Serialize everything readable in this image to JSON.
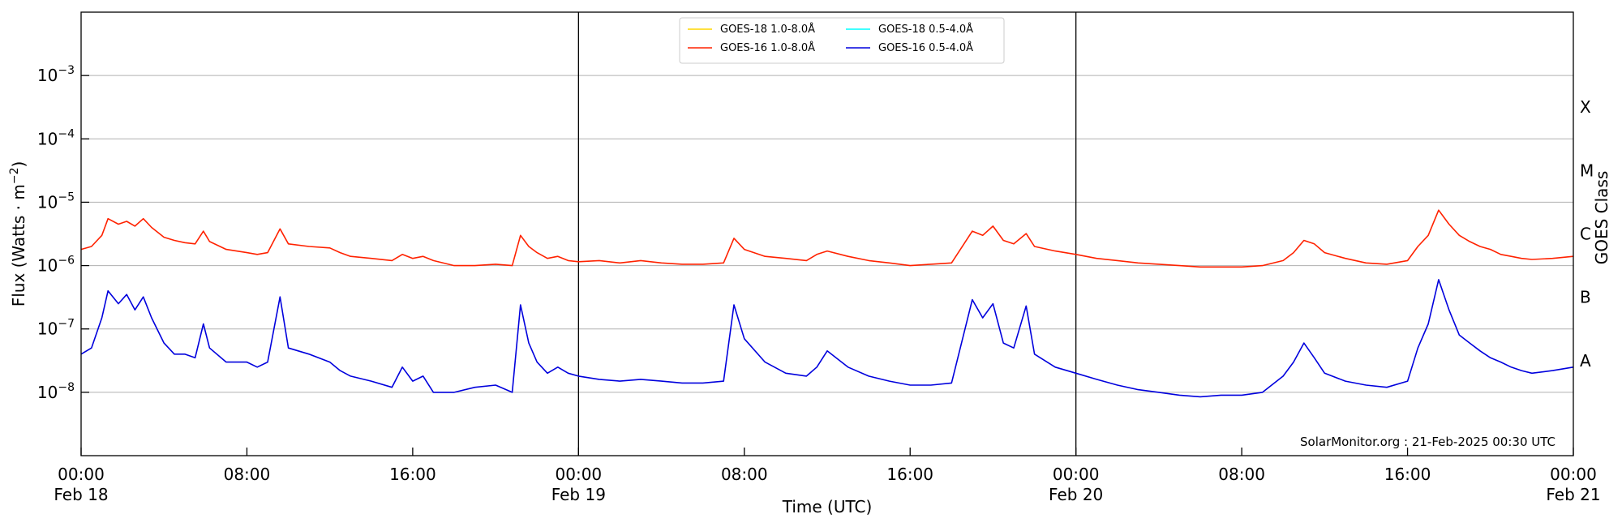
{
  "chart_data": {
    "type": "line",
    "ylabel": "Flux (Watts · m",
    "ylabel_sup": "−2",
    "ylabel_close": ")",
    "xlabel": "Time (UTC)",
    "right_label": "GOES Class",
    "credit": "SolarMonitor.org : 21-Feb-2025 00:30 UTC",
    "y_scale": "log",
    "ylim": [
      1e-09,
      0.01
    ],
    "xlim_hours": [
      0,
      72
    ],
    "grid": "horizontal",
    "legend_position": "top-center",
    "x_ticks": [
      {
        "t": 0,
        "time": "00:00",
        "date": "Feb 18"
      },
      {
        "t": 8,
        "time": "08:00",
        "date": ""
      },
      {
        "t": 16,
        "time": "16:00",
        "date": ""
      },
      {
        "t": 24,
        "time": "00:00",
        "date": "Feb 19"
      },
      {
        "t": 32,
        "time": "08:00",
        "date": ""
      },
      {
        "t": 40,
        "time": "16:00",
        "date": ""
      },
      {
        "t": 48,
        "time": "00:00",
        "date": "Feb 20"
      },
      {
        "t": 56,
        "time": "08:00",
        "date": ""
      },
      {
        "t": 64,
        "time": "16:00",
        "date": ""
      },
      {
        "t": 72,
        "time": "00:00",
        "date": "Feb 21"
      }
    ],
    "y_ticks": [
      {
        "v": 1e-08,
        "base": "10",
        "exp": "−8"
      },
      {
        "v": 1e-07,
        "base": "10",
        "exp": "−7"
      },
      {
        "v": 1e-06,
        "base": "10",
        "exp": "−6"
      },
      {
        "v": 1e-05,
        "base": "10",
        "exp": "−5"
      },
      {
        "v": 0.0001,
        "base": "10",
        "exp": "−4"
      },
      {
        "v": 0.001,
        "base": "10",
        "exp": "−3"
      }
    ],
    "goes_classes": [
      {
        "label": "A",
        "v": 3.16e-08
      },
      {
        "label": "B",
        "v": 3.16e-07
      },
      {
        "label": "C",
        "v": 3.16e-06
      },
      {
        "label": "M",
        "v": 3.16e-05
      },
      {
        "label": "X",
        "v": 0.000316
      }
    ],
    "vlines_hours": [
      24,
      48
    ],
    "series": [
      {
        "name": "GOES-18 1.0-8.0Å",
        "color": "#ffd700",
        "points": []
      },
      {
        "name": "GOES-16 1.0-8.0Å",
        "color": "#ff2200",
        "points": [
          [
            0,
            1.8e-06
          ],
          [
            0.5,
            2e-06
          ],
          [
            1,
            3e-06
          ],
          [
            1.3,
            5.5e-06
          ],
          [
            1.8,
            4.5e-06
          ],
          [
            2.2,
            5e-06
          ],
          [
            2.6,
            4.2e-06
          ],
          [
            3.0,
            5.5e-06
          ],
          [
            3.4,
            4e-06
          ],
          [
            4,
            2.8e-06
          ],
          [
            4.5,
            2.5e-06
          ],
          [
            5,
            2.3e-06
          ],
          [
            5.5,
            2.2e-06
          ],
          [
            5.9,
            3.5e-06
          ],
          [
            6.2,
            2.4e-06
          ],
          [
            7,
            1.8e-06
          ],
          [
            8,
            1.6e-06
          ],
          [
            8.5,
            1.5e-06
          ],
          [
            9,
            1.6e-06
          ],
          [
            9.6,
            3.8e-06
          ],
          [
            10,
            2.2e-06
          ],
          [
            11,
            2e-06
          ],
          [
            12,
            1.9e-06
          ],
          [
            12.5,
            1.6e-06
          ],
          [
            13,
            1.4e-06
          ],
          [
            14,
            1.3e-06
          ],
          [
            15,
            1.2e-06
          ],
          [
            15.5,
            1.5e-06
          ],
          [
            16,
            1.3e-06
          ],
          [
            16.5,
            1.4e-06
          ],
          [
            17,
            1.2e-06
          ],
          [
            18,
            1e-06
          ],
          [
            19,
            1e-06
          ],
          [
            20,
            1.05e-06
          ],
          [
            20.8,
            1e-06
          ],
          [
            21.2,
            3e-06
          ],
          [
            21.6,
            2e-06
          ],
          [
            22,
            1.6e-06
          ],
          [
            22.5,
            1.3e-06
          ],
          [
            23,
            1.4e-06
          ],
          [
            23.5,
            1.2e-06
          ],
          [
            24,
            1.15e-06
          ],
          [
            25,
            1.2e-06
          ],
          [
            26,
            1.1e-06
          ],
          [
            27,
            1.2e-06
          ],
          [
            28,
            1.1e-06
          ],
          [
            29,
            1.05e-06
          ],
          [
            30,
            1.05e-06
          ],
          [
            31,
            1.1e-06
          ],
          [
            31.5,
            2.7e-06
          ],
          [
            32,
            1.8e-06
          ],
          [
            33,
            1.4e-06
          ],
          [
            34,
            1.3e-06
          ],
          [
            35,
            1.2e-06
          ],
          [
            35.5,
            1.5e-06
          ],
          [
            36,
            1.7e-06
          ],
          [
            37,
            1.4e-06
          ],
          [
            38,
            1.2e-06
          ],
          [
            39,
            1.1e-06
          ],
          [
            40,
            1e-06
          ],
          [
            41,
            1.05e-06
          ],
          [
            42,
            1.1e-06
          ],
          [
            43,
            3.5e-06
          ],
          [
            43.5,
            3e-06
          ],
          [
            44,
            4.2e-06
          ],
          [
            44.5,
            2.5e-06
          ],
          [
            45,
            2.2e-06
          ],
          [
            45.6,
            3.2e-06
          ],
          [
            46,
            2e-06
          ],
          [
            47,
            1.7e-06
          ],
          [
            48,
            1.5e-06
          ],
          [
            49,
            1.3e-06
          ],
          [
            50,
            1.2e-06
          ],
          [
            51,
            1.1e-06
          ],
          [
            52,
            1.05e-06
          ],
          [
            53,
            1e-06
          ],
          [
            54,
            9.5e-07
          ],
          [
            55,
            9.5e-07
          ],
          [
            56,
            9.5e-07
          ],
          [
            57,
            1e-06
          ],
          [
            58,
            1.2e-06
          ],
          [
            58.5,
            1.6e-06
          ],
          [
            59,
            2.5e-06
          ],
          [
            59.5,
            2.2e-06
          ],
          [
            60,
            1.6e-06
          ],
          [
            61,
            1.3e-06
          ],
          [
            62,
            1.1e-06
          ],
          [
            63,
            1.05e-06
          ],
          [
            64,
            1.2e-06
          ],
          [
            64.5,
            2e-06
          ],
          [
            65,
            3e-06
          ],
          [
            65.5,
            7.5e-06
          ],
          [
            66,
            4.5e-06
          ],
          [
            66.5,
            3e-06
          ],
          [
            67,
            2.4e-06
          ],
          [
            67.5,
            2e-06
          ],
          [
            68,
            1.8e-06
          ],
          [
            68.5,
            1.5e-06
          ],
          [
            69,
            1.4e-06
          ],
          [
            69.5,
            1.3e-06
          ],
          [
            70,
            1.25e-06
          ],
          [
            71,
            1.3e-06
          ],
          [
            72,
            1.4e-06
          ]
        ]
      },
      {
        "name": "GOES-18 0.5-4.0Å",
        "color": "#00ffff",
        "points": []
      },
      {
        "name": "GOES-16 0.5-4.0Å",
        "color": "#0000dd",
        "points": [
          [
            0,
            4e-08
          ],
          [
            0.5,
            5e-08
          ],
          [
            1,
            1.5e-07
          ],
          [
            1.3,
            4e-07
          ],
          [
            1.8,
            2.5e-07
          ],
          [
            2.2,
            3.5e-07
          ],
          [
            2.6,
            2e-07
          ],
          [
            3.0,
            3.2e-07
          ],
          [
            3.4,
            1.5e-07
          ],
          [
            4,
            6e-08
          ],
          [
            4.5,
            4e-08
          ],
          [
            5,
            4e-08
          ],
          [
            5.5,
            3.5e-08
          ],
          [
            5.9,
            1.2e-07
          ],
          [
            6.2,
            5e-08
          ],
          [
            7,
            3e-08
          ],
          [
            8,
            3e-08
          ],
          [
            8.5,
            2.5e-08
          ],
          [
            9,
            3e-08
          ],
          [
            9.6,
            3.2e-07
          ],
          [
            10,
            5e-08
          ],
          [
            11,
            4e-08
          ],
          [
            12,
            3e-08
          ],
          [
            12.5,
            2.2e-08
          ],
          [
            13,
            1.8e-08
          ],
          [
            14,
            1.5e-08
          ],
          [
            15,
            1.2e-08
          ],
          [
            15.5,
            2.5e-08
          ],
          [
            16,
            1.5e-08
          ],
          [
            16.5,
            1.8e-08
          ],
          [
            17,
            1e-08
          ],
          [
            18,
            1e-08
          ],
          [
            19,
            1.2e-08
          ],
          [
            20,
            1.3e-08
          ],
          [
            20.8,
            1e-08
          ],
          [
            21.2,
            2.4e-07
          ],
          [
            21.6,
            6e-08
          ],
          [
            22,
            3e-08
          ],
          [
            22.5,
            2e-08
          ],
          [
            23,
            2.5e-08
          ],
          [
            23.5,
            2e-08
          ],
          [
            24,
            1.8e-08
          ],
          [
            25,
            1.6e-08
          ],
          [
            26,
            1.5e-08
          ],
          [
            27,
            1.6e-08
          ],
          [
            28,
            1.5e-08
          ],
          [
            29,
            1.4e-08
          ],
          [
            30,
            1.4e-08
          ],
          [
            31,
            1.5e-08
          ],
          [
            31.5,
            2.4e-07
          ],
          [
            32,
            7e-08
          ],
          [
            33,
            3e-08
          ],
          [
            34,
            2e-08
          ],
          [
            35,
            1.8e-08
          ],
          [
            35.5,
            2.5e-08
          ],
          [
            36,
            4.5e-08
          ],
          [
            37,
            2.5e-08
          ],
          [
            38,
            1.8e-08
          ],
          [
            39,
            1.5e-08
          ],
          [
            40,
            1.3e-08
          ],
          [
            41,
            1.3e-08
          ],
          [
            42,
            1.4e-08
          ],
          [
            43,
            2.9e-07
          ],
          [
            43.5,
            1.5e-07
          ],
          [
            44,
            2.5e-07
          ],
          [
            44.5,
            6e-08
          ],
          [
            45,
            5e-08
          ],
          [
            45.6,
            2.3e-07
          ],
          [
            46,
            4e-08
          ],
          [
            47,
            2.5e-08
          ],
          [
            48,
            2e-08
          ],
          [
            49,
            1.6e-08
          ],
          [
            50,
            1.3e-08
          ],
          [
            51,
            1.1e-08
          ],
          [
            52,
            1e-08
          ],
          [
            53,
            9e-09
          ],
          [
            54,
            8.5e-09
          ],
          [
            55,
            9e-09
          ],
          [
            56,
            9e-09
          ],
          [
            57,
            1e-08
          ],
          [
            58,
            1.8e-08
          ],
          [
            58.5,
            3e-08
          ],
          [
            59,
            6e-08
          ],
          [
            59.5,
            3.5e-08
          ],
          [
            60,
            2e-08
          ],
          [
            61,
            1.5e-08
          ],
          [
            62,
            1.3e-08
          ],
          [
            63,
            1.2e-08
          ],
          [
            64,
            1.5e-08
          ],
          [
            64.5,
            5e-08
          ],
          [
            65,
            1.2e-07
          ],
          [
            65.5,
            6e-07
          ],
          [
            66,
            2e-07
          ],
          [
            66.5,
            8e-08
          ],
          [
            67,
            6e-08
          ],
          [
            67.5,
            4.5e-08
          ],
          [
            68,
            3.5e-08
          ],
          [
            68.5,
            3e-08
          ],
          [
            69,
            2.5e-08
          ],
          [
            69.5,
            2.2e-08
          ],
          [
            70,
            2e-08
          ],
          [
            71,
            2.2e-08
          ],
          [
            72,
            2.5e-08
          ]
        ]
      }
    ]
  }
}
